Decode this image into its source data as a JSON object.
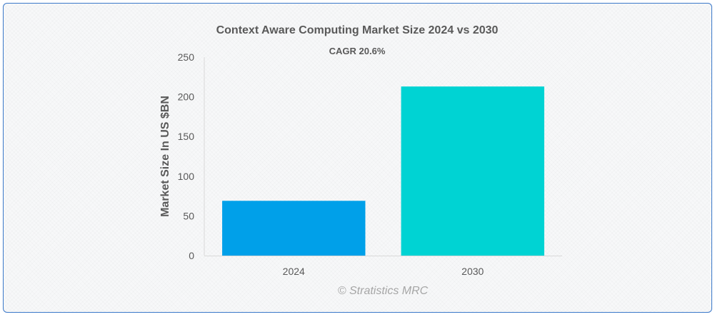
{
  "chart_data": {
    "type": "bar",
    "title": "Context Aware Computing Market Size 2024 vs 2030",
    "subtitle": "CAGR 20.6%",
    "categories": [
      "2024",
      "2030"
    ],
    "values": [
      69,
      213
    ],
    "colors": [
      "#00a0e9",
      "#00d3d3"
    ],
    "xlabel": "",
    "ylabel": "Market Size In US $BN",
    "ylim": [
      0,
      250
    ],
    "yticks": [
      0,
      50,
      100,
      150,
      200,
      250
    ],
    "grid": false,
    "legend": "none"
  },
  "credit": "© Stratistics MRC"
}
